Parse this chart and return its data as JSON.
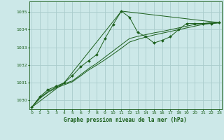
{
  "title": "Graphe pression niveau de la mer (hPa)",
  "background_color": "#cce8e8",
  "grid_color": "#aacccc",
  "line_color": "#1a5e1a",
  "marker_color": "#1a5e1a",
  "xlim": [
    -0.3,
    23.3
  ],
  "ylim": [
    1029.5,
    1035.6
  ],
  "yticks": [
    1030,
    1031,
    1032,
    1033,
    1034,
    1035
  ],
  "xticks": [
    0,
    1,
    2,
    3,
    4,
    5,
    6,
    7,
    8,
    9,
    10,
    11,
    12,
    13,
    14,
    15,
    16,
    17,
    18,
    19,
    20,
    21,
    22,
    23
  ],
  "series": [
    {
      "x": [
        0,
        1,
        2,
        3,
        4,
        5,
        6,
        7,
        8,
        9,
        10,
        11,
        12,
        13,
        14,
        15,
        16,
        17,
        18,
        19,
        20,
        21,
        22,
        23
      ],
      "y": [
        1029.6,
        1030.2,
        1030.6,
        1030.8,
        1031.0,
        1031.4,
        1031.9,
        1032.25,
        1032.6,
        1033.5,
        1034.3,
        1035.05,
        1034.7,
        1033.85,
        1033.6,
        1033.25,
        1033.4,
        1033.6,
        1034.0,
        1034.35,
        1034.35,
        1034.35,
        1034.35,
        1034.4
      ],
      "has_markers": true
    },
    {
      "x": [
        0,
        1,
        2,
        3,
        4,
        5,
        6,
        7,
        8,
        9,
        10,
        11,
        12,
        13,
        14,
        15,
        16,
        17,
        18,
        19,
        20,
        21,
        22,
        23
      ],
      "y": [
        1029.6,
        1030.15,
        1030.5,
        1030.75,
        1030.95,
        1031.1,
        1031.45,
        1031.8,
        1032.1,
        1032.45,
        1032.8,
        1033.15,
        1033.5,
        1033.62,
        1033.72,
        1033.82,
        1033.9,
        1034.0,
        1034.1,
        1034.2,
        1034.3,
        1034.35,
        1034.4,
        1034.4
      ],
      "has_markers": false
    },
    {
      "x": [
        0,
        1,
        2,
        3,
        4,
        5,
        6,
        7,
        8,
        9,
        10,
        11,
        12,
        13,
        14,
        15,
        16,
        17,
        18,
        19,
        20,
        21,
        22,
        23
      ],
      "y": [
        1029.6,
        1030.1,
        1030.45,
        1030.7,
        1030.88,
        1031.05,
        1031.38,
        1031.72,
        1032.0,
        1032.3,
        1032.62,
        1032.95,
        1033.3,
        1033.45,
        1033.58,
        1033.7,
        1033.8,
        1033.9,
        1034.0,
        1034.1,
        1034.2,
        1034.3,
        1034.35,
        1034.38
      ],
      "has_markers": false
    },
    {
      "x": [
        0,
        4,
        11,
        23
      ],
      "y": [
        1029.6,
        1031.0,
        1035.05,
        1034.4
      ],
      "has_markers": false
    }
  ]
}
